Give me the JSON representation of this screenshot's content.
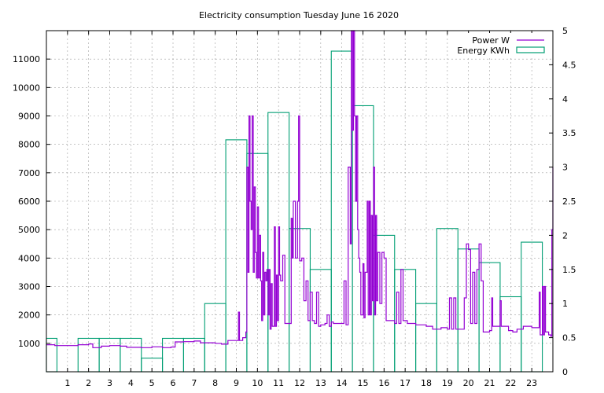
{
  "chart_data": {
    "type": "line",
    "title": "Electricity consumption Tuesday June 16 2020",
    "grid": true,
    "legend_placement": "top-right",
    "x": {
      "range": [
        0,
        24
      ],
      "ticks": [
        1,
        2,
        3,
        4,
        5,
        6,
        7,
        8,
        9,
        10,
        11,
        12,
        13,
        14,
        15,
        16,
        17,
        18,
        19,
        20,
        21,
        22,
        23
      ],
      "tick_labels": [
        "1",
        "2",
        "3",
        "4",
        "5",
        "6",
        "7",
        "8",
        "9",
        "10",
        "11",
        "12",
        "13",
        "14",
        "15",
        "16",
        "17",
        "18",
        "19",
        "20",
        "21",
        "22",
        "23"
      ]
    },
    "y_left": {
      "range": [
        0,
        12000
      ],
      "ticks": [
        1000,
        2000,
        3000,
        4000,
        5000,
        6000,
        7000,
        8000,
        9000,
        10000,
        11000
      ],
      "tick_labels": [
        "1000",
        "2000",
        "3000",
        "4000",
        "5000",
        "6000",
        "7000",
        "8000",
        "9000",
        "10000",
        "11000"
      ]
    },
    "y_right": {
      "range": [
        0,
        5
      ],
      "ticks": [
        0,
        0.5,
        1,
        1.5,
        2,
        2.5,
        3,
        3.5,
        4,
        4.5,
        5
      ],
      "tick_labels": [
        "0",
        "0.5",
        "1",
        "1.5",
        "2",
        "2.5",
        "3",
        "3.5",
        "4",
        "4.5",
        "5"
      ]
    },
    "series": [
      {
        "name": "Power W",
        "color": "#9400d3",
        "axis": "left",
        "style": "steps",
        "points": [
          [
            0,
            950
          ],
          [
            0.4,
            920
          ],
          [
            1,
            920
          ],
          [
            1.5,
            950
          ],
          [
            2,
            980
          ],
          [
            2.2,
            850
          ],
          [
            2.6,
            900
          ],
          [
            3,
            920
          ],
          [
            3.5,
            900
          ],
          [
            3.8,
            860
          ],
          [
            4.5,
            850
          ],
          [
            5,
            880
          ],
          [
            5.5,
            850
          ],
          [
            5.9,
            870
          ],
          [
            6.1,
            1050
          ],
          [
            6.5,
            1060
          ],
          [
            7,
            1080
          ],
          [
            7.3,
            1020
          ],
          [
            8,
            1000
          ],
          [
            8.3,
            970
          ],
          [
            8.6,
            1100
          ],
          [
            9,
            1100
          ],
          [
            9.1,
            2100
          ],
          [
            9.15,
            1100
          ],
          [
            9.3,
            1200
          ],
          [
            9.45,
            1400
          ],
          [
            9.5,
            7200
          ],
          [
            9.55,
            3500
          ],
          [
            9.6,
            9000
          ],
          [
            9.65,
            6000
          ],
          [
            9.7,
            5000
          ],
          [
            9.75,
            9000
          ],
          [
            9.8,
            3500
          ],
          [
            9.85,
            6500
          ],
          [
            9.9,
            4200
          ],
          [
            9.95,
            3300
          ],
          [
            10,
            5800
          ],
          [
            10.05,
            3300
          ],
          [
            10.1,
            4800
          ],
          [
            10.15,
            3200
          ],
          [
            10.2,
            1800
          ],
          [
            10.25,
            4200
          ],
          [
            10.3,
            2000
          ],
          [
            10.35,
            3500
          ],
          [
            10.4,
            3200
          ],
          [
            10.45,
            3600
          ],
          [
            10.5,
            2000
          ],
          [
            10.55,
            3600
          ],
          [
            10.6,
            1500
          ],
          [
            10.65,
            3100
          ],
          [
            10.7,
            1600
          ],
          [
            10.8,
            5100
          ],
          [
            10.85,
            1600
          ],
          [
            10.9,
            3400
          ],
          [
            10.95,
            1800
          ],
          [
            11,
            5100
          ],
          [
            11.05,
            3400
          ],
          [
            11.1,
            3200
          ],
          [
            11.2,
            4100
          ],
          [
            11.3,
            1700
          ],
          [
            11.5,
            1700
          ],
          [
            11.6,
            5400
          ],
          [
            11.65,
            4000
          ],
          [
            11.7,
            6000
          ],
          [
            11.8,
            4000
          ],
          [
            11.9,
            6000
          ],
          [
            11.95,
            9000
          ],
          [
            12,
            3900
          ],
          [
            12.1,
            4000
          ],
          [
            12.2,
            2500
          ],
          [
            12.3,
            3200
          ],
          [
            12.4,
            1800
          ],
          [
            12.5,
            2800
          ],
          [
            12.6,
            1800
          ],
          [
            12.7,
            1700
          ],
          [
            12.8,
            2800
          ],
          [
            12.9,
            1600
          ],
          [
            13,
            1650
          ],
          [
            13.2,
            1700
          ],
          [
            13.3,
            2000
          ],
          [
            13.4,
            1600
          ],
          [
            13.5,
            1750
          ],
          [
            13.6,
            1700
          ],
          [
            14,
            1700
          ],
          [
            14.1,
            3200
          ],
          [
            14.2,
            1650
          ],
          [
            14.3,
            7200
          ],
          [
            14.4,
            4500
          ],
          [
            14.45,
            12000
          ],
          [
            14.5,
            8500
          ],
          [
            14.55,
            12000
          ],
          [
            14.6,
            9000
          ],
          [
            14.65,
            6000
          ],
          [
            14.7,
            9000
          ],
          [
            14.75,
            5000
          ],
          [
            14.8,
            4000
          ],
          [
            14.85,
            3500
          ],
          [
            14.9,
            2000
          ],
          [
            15,
            3800
          ],
          [
            15.05,
            1900
          ],
          [
            15.1,
            3500
          ],
          [
            15.2,
            6000
          ],
          [
            15.25,
            2000
          ],
          [
            15.3,
            6000
          ],
          [
            15.35,
            2000
          ],
          [
            15.4,
            5500
          ],
          [
            15.45,
            2500
          ],
          [
            15.5,
            7200
          ],
          [
            15.55,
            2000
          ],
          [
            15.6,
            5500
          ],
          [
            15.65,
            2500
          ],
          [
            15.7,
            4200
          ],
          [
            15.8,
            2400
          ],
          [
            15.9,
            4200
          ],
          [
            16,
            4000
          ],
          [
            16.1,
            1800
          ],
          [
            16.3,
            1800
          ],
          [
            16.5,
            1700
          ],
          [
            16.6,
            2800
          ],
          [
            16.7,
            1700
          ],
          [
            16.8,
            3600
          ],
          [
            16.9,
            1800
          ],
          [
            17,
            1800
          ],
          [
            17.1,
            1700
          ],
          [
            17.5,
            1650
          ],
          [
            18,
            1600
          ],
          [
            18.3,
            1500
          ],
          [
            18.7,
            1550
          ],
          [
            19,
            1500
          ],
          [
            19.1,
            2600
          ],
          [
            19.2,
            1500
          ],
          [
            19.3,
            2600
          ],
          [
            19.4,
            1500
          ],
          [
            19.7,
            1500
          ],
          [
            19.8,
            2600
          ],
          [
            19.9,
            4500
          ],
          [
            20,
            4300
          ],
          [
            20.1,
            1700
          ],
          [
            20.2,
            3500
          ],
          [
            20.3,
            1700
          ],
          [
            20.4,
            3600
          ],
          [
            20.5,
            4500
          ],
          [
            20.6,
            3200
          ],
          [
            20.7,
            1400
          ],
          [
            21,
            1450
          ],
          [
            21.1,
            2600
          ],
          [
            21.15,
            1600
          ],
          [
            21.3,
            1600
          ],
          [
            21.5,
            2500
          ],
          [
            21.55,
            1600
          ],
          [
            21.8,
            1600
          ],
          [
            21.9,
            1450
          ],
          [
            22.1,
            1400
          ],
          [
            22.3,
            1500
          ],
          [
            22.5,
            1500
          ],
          [
            22.6,
            1600
          ],
          [
            23,
            1550
          ],
          [
            23.2,
            1550
          ],
          [
            23.35,
            2800
          ],
          [
            23.4,
            1300
          ],
          [
            23.5,
            3000
          ],
          [
            23.55,
            1300
          ],
          [
            23.6,
            3000
          ],
          [
            23.65,
            1400
          ],
          [
            23.8,
            1300
          ],
          [
            23.9,
            1250
          ],
          [
            23.95,
            5000
          ],
          [
            24,
            7200
          ]
        ]
      },
      {
        "name": "Energy KWh",
        "color": "#009e73",
        "axis": "right",
        "style": "boxes",
        "hours": [
          0,
          1,
          2,
          3,
          4,
          5,
          6,
          7,
          8,
          9,
          10,
          11,
          12,
          13,
          14,
          15,
          16,
          17,
          18,
          19,
          20,
          21,
          22,
          23
        ],
        "values": [
          0.49,
          0.0,
          0.49,
          0.49,
          0.49,
          0.2,
          0.49,
          0.49,
          1.0,
          3.4,
          3.2,
          3.8,
          2.1,
          1.5,
          4.7,
          3.9,
          2.0,
          1.5,
          1.0,
          2.1,
          1.8,
          1.6,
          1.1,
          1.9
        ]
      }
    ]
  }
}
